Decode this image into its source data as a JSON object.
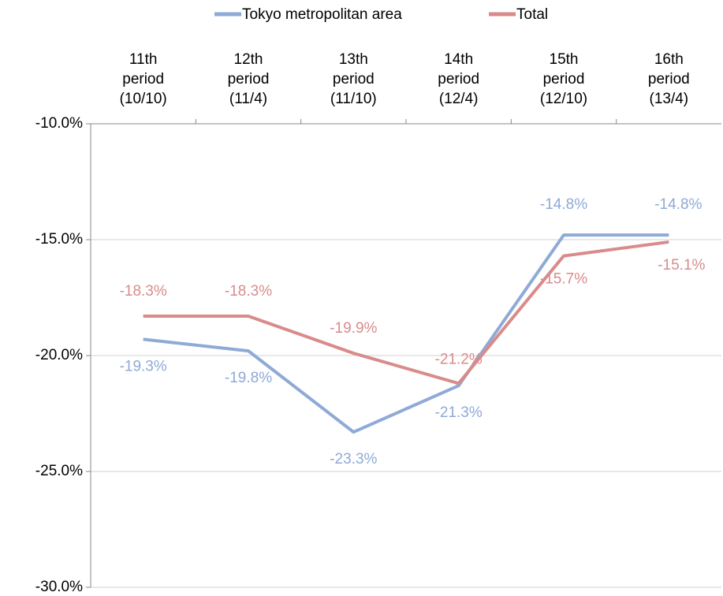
{
  "chart_data": {
    "type": "line",
    "categories": [
      "11th period (10/10)",
      "12th period (11/4)",
      "13th period (11/10)",
      "14th period (12/4)",
      "15th period (12/10)",
      "16th period (13/4)"
    ],
    "series": [
      {
        "name": "Tokyo metropolitan area",
        "color": "#8eaad6",
        "values": [
          -19.3,
          -19.8,
          -23.3,
          -21.3,
          -14.8,
          -14.8
        ],
        "value_labels": [
          "-19.3%",
          "-19.8%",
          "-23.3%",
          "-21.3%",
          "-14.8%",
          "-14.8%"
        ]
      },
      {
        "name": "Total",
        "color": "#d98b8b",
        "values": [
          -18.3,
          -18.3,
          -19.9,
          -21.2,
          -15.7,
          -15.1
        ],
        "value_labels": [
          "-18.3%",
          "-18.3%",
          "-19.9%",
          "-21.2%",
          "-15.7%",
          "-15.1%"
        ]
      }
    ],
    "ylim": [
      -30,
      -10
    ],
    "yticks": [
      {
        "value": -10,
        "label": "-10.0%"
      },
      {
        "value": -15,
        "label": "-15.0%"
      },
      {
        "value": -20,
        "label": "-20.0%"
      },
      {
        "value": -25,
        "label": "-25.0%"
      },
      {
        "value": -30,
        "label": "-30.0%"
      }
    ],
    "grid": true,
    "legend": "top"
  }
}
